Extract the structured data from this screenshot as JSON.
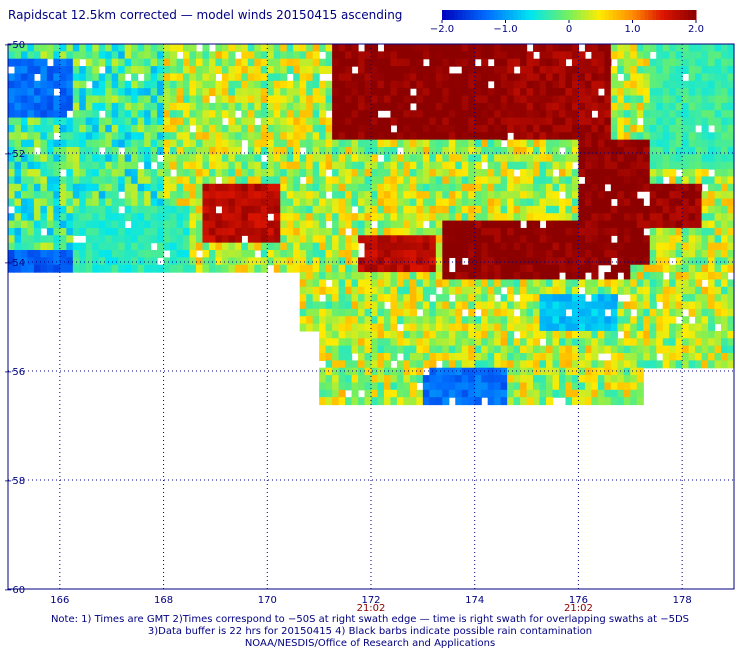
{
  "title": "Rapidscat 12.5km corrected — model winds 20150415 ascending",
  "notes": [
    "Note: 1) Times are GMT 2)Times correspond to −50S at right swath edge — time is right swath for overlapping swaths at −5DS",
    "3)Data buffer is 22 hrs for 20150415 4) Black barbs indicate possible rain contamination",
    "NOAA/NESDIS/Office of Research and Applications"
  ],
  "colors": {
    "axis": "#000080",
    "time_label": "#8b0000",
    "grid": "#000080"
  },
  "chart_data": {
    "type": "heatmap",
    "title": "Rapidscat 12.5km corrected — model winds 20150415 ascending",
    "xlim": [
      165,
      179
    ],
    "ylim": [
      -60,
      -50
    ],
    "x_ticks": [
      166,
      168,
      170,
      172,
      174,
      176,
      178
    ],
    "x_tick_labels": [
      "166",
      "168",
      "170",
      "172",
      "174",
      "176",
      "178"
    ],
    "y_ticks": [
      -50,
      -52,
      -54,
      -56,
      -58,
      -60
    ],
    "y_tick_labels": [
      "−50",
      "−52",
      "−54",
      "−56",
      "−58",
      "−60"
    ],
    "time_labels": [
      {
        "x": 172,
        "label": "21:02"
      },
      {
        "x": 176,
        "label": "21:02"
      }
    ],
    "colorbar": {
      "range": [
        -2.0,
        2.0
      ],
      "tick_values": [
        -2.0,
        -1.0,
        0,
        1.0,
        2.0
      ],
      "tick_labels": [
        "−2.0",
        "−1.0",
        "0",
        "1.0",
        "2.0"
      ],
      "colormap": "blue-cyan-green-yellow-red-darkred"
    },
    "grid": true,
    "features": [
      {
        "type": "high",
        "lon": [
          171.2,
          174.8
        ],
        "lat": [
          -51.7,
          -50.0
        ],
        "value": 2.0
      },
      {
        "type": "high",
        "lon": [
          174.6,
          176.6
        ],
        "lat": [
          -51.7,
          -50.0
        ],
        "value": 1.9
      },
      {
        "type": "high",
        "lon": [
          176.0,
          177.4
        ],
        "lat": [
          -54.0,
          -51.8
        ],
        "value": 2.0
      },
      {
        "type": "high",
        "lon": [
          173.4,
          177.0
        ],
        "lat": [
          -54.3,
          -53.2
        ],
        "value": 2.0
      },
      {
        "type": "high",
        "lon": [
          177.0,
          178.4
        ],
        "lat": [
          -53.4,
          -52.6
        ],
        "value": 1.9
      },
      {
        "type": "high",
        "lon": [
          171.8,
          173.2
        ],
        "lat": [
          -54.2,
          -53.5
        ],
        "value": 1.7
      },
      {
        "type": "high",
        "lon": [
          168.7,
          170.2
        ],
        "lat": [
          -53.6,
          -52.6
        ],
        "value": 1.7
      },
      {
        "type": "low",
        "lon": [
          165.0,
          166.6
        ],
        "lat": [
          -55.2,
          -53.8
        ],
        "value": -1.4
      },
      {
        "type": "low",
        "lon": [
          165.0,
          166.2
        ],
        "lat": [
          -51.4,
          -50.3
        ],
        "value": -1.3
      },
      {
        "type": "low",
        "lon": [
          173.0,
          174.6
        ],
        "lat": [
          -56.6,
          -56.0
        ],
        "value": -1.3
      },
      {
        "type": "low",
        "lon": [
          175.2,
          176.8
        ],
        "lat": [
          -55.3,
          -54.6
        ],
        "value": -0.8
      },
      {
        "type": "mid",
        "lon": [
          166.2,
          168.5
        ],
        "lat": [
          -54.8,
          -53.0
        ],
        "value": -0.4
      },
      {
        "type": "mid",
        "lon": [
          177.4,
          179.0
        ],
        "lat": [
          -52.3,
          -50.0
        ],
        "value": -0.3
      }
    ]
  }
}
